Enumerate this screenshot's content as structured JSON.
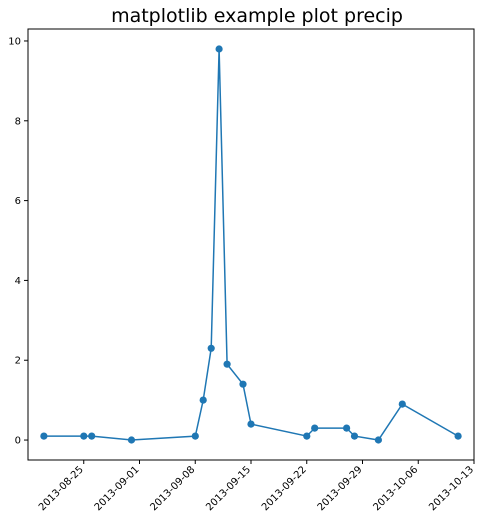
{
  "chart_data": {
    "type": "line",
    "title": "matplotlib example plot precip",
    "xlabel": "",
    "ylabel": "",
    "x_type": "date",
    "xlim": [
      "2013-08-18",
      "2013-10-13"
    ],
    "ylim": [
      -0.5,
      10.3
    ],
    "grid": false,
    "legend": "none",
    "line_color": "#1f77b4",
    "marker": "circle",
    "x_ticks": [
      "2013-08-25",
      "2013-09-01",
      "2013-09-08",
      "2013-09-15",
      "2013-09-22",
      "2013-09-29",
      "2013-10-06",
      "2013-10-13"
    ],
    "y_ticks": [
      0,
      2,
      4,
      6,
      8,
      10
    ],
    "series": [
      {
        "x": [
          "2013-08-20",
          "2013-08-25",
          "2013-08-26",
          "2013-08-31",
          "2013-09-08",
          "2013-09-09",
          "2013-09-10",
          "2013-09-11",
          "2013-09-12",
          "2013-09-14",
          "2013-09-15",
          "2013-09-22",
          "2013-09-23",
          "2013-09-27",
          "2013-09-28",
          "2013-10-01",
          "2013-10-04",
          "2013-10-11"
        ],
        "y": [
          0.1,
          0.1,
          0.1,
          0.0,
          0.1,
          1.0,
          2.3,
          9.8,
          1.9,
          1.4,
          0.4,
          0.1,
          0.3,
          0.3,
          0.1,
          0.0,
          0.9,
          0.1
        ]
      }
    ]
  }
}
